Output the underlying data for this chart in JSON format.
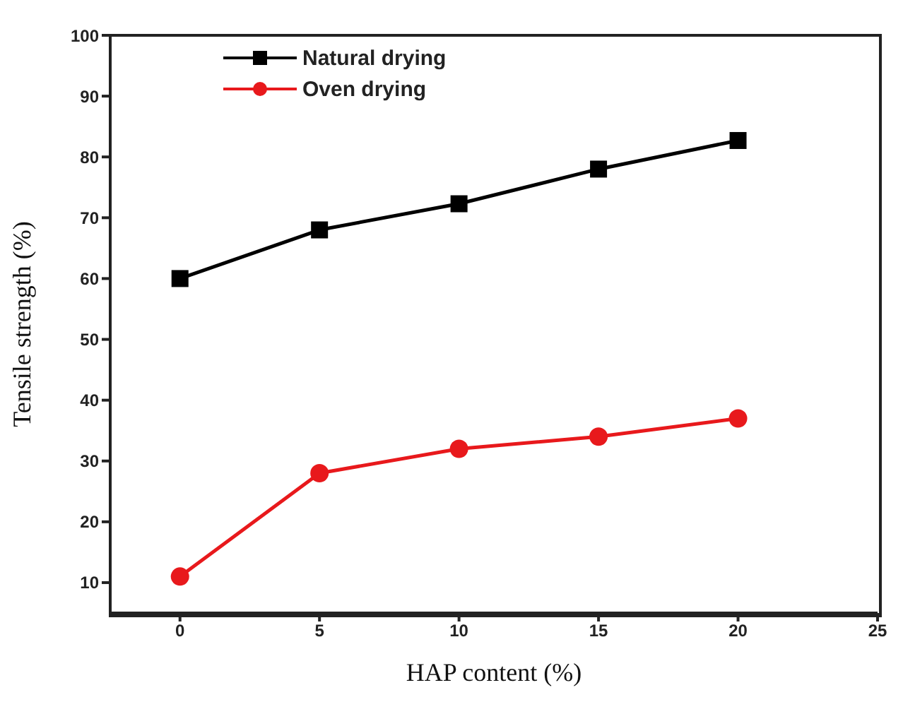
{
  "chart_data": {
    "type": "line",
    "xlabel": "HAP content (%)",
    "ylabel": "Tensile strength (%)",
    "x": [
      0,
      5,
      10,
      15,
      20
    ],
    "series": [
      {
        "name": "Natural drying",
        "color": "#000000",
        "marker": "square",
        "values": [
          60,
          68,
          72.3,
          78,
          82.7
        ]
      },
      {
        "name": "Oven drying",
        "color": "#e8191c",
        "marker": "circle",
        "values": [
          11,
          28,
          32,
          34,
          37
        ]
      }
    ],
    "xlim": [
      -2.5,
      25
    ],
    "xticks": [
      0,
      5,
      10,
      15,
      20,
      25
    ],
    "ylim": [
      5,
      100
    ],
    "yticks": [
      10,
      20,
      30,
      40,
      50,
      60,
      70,
      80,
      90,
      100
    ],
    "grid": false,
    "legend": "top left",
    "line_style": "solid"
  }
}
